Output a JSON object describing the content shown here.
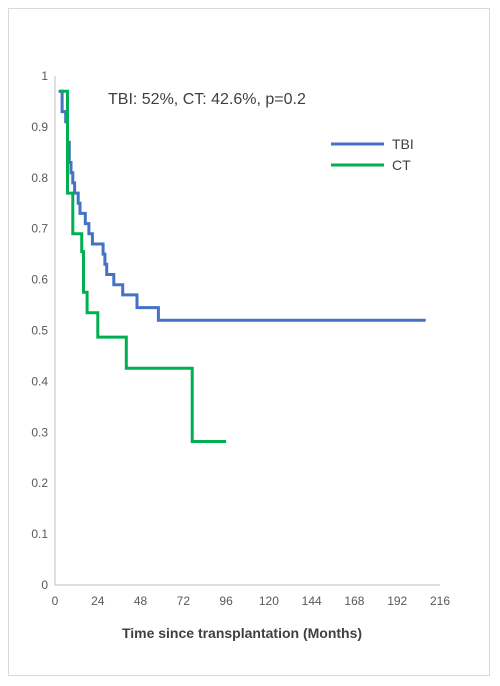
{
  "chart_data": {
    "type": "line",
    "step": true,
    "title": "",
    "annotation": "TBI: 52%, CT: 42.6%, p=0.2",
    "xlabel": "Time since transplantation (Months)",
    "ylabel": "",
    "xlim": [
      0,
      216
    ],
    "ylim": [
      0,
      1
    ],
    "xticks": [
      0,
      24,
      48,
      72,
      96,
      120,
      144,
      168,
      192,
      216
    ],
    "yticks": [
      0,
      0.1,
      0.2,
      0.3,
      0.4,
      0.5,
      0.6,
      0.7,
      0.8,
      0.9,
      1
    ],
    "ytick_labels": [
      "0",
      "0.1",
      "0.2",
      "0.3",
      "0.4",
      "0.5",
      "0.6",
      "0.7",
      "0.8",
      "0.9",
      "1"
    ],
    "grid": false,
    "legend": "right",
    "series": [
      {
        "name": "TBI",
        "color": "#4472C4",
        "points": [
          [
            2,
            0.97
          ],
          [
            4,
            0.97
          ],
          [
            4,
            0.93
          ],
          [
            6,
            0.93
          ],
          [
            6,
            0.91
          ],
          [
            7,
            0.91
          ],
          [
            7,
            0.87
          ],
          [
            8,
            0.87
          ],
          [
            8,
            0.83
          ],
          [
            9,
            0.83
          ],
          [
            9,
            0.81
          ],
          [
            10,
            0.81
          ],
          [
            10,
            0.79
          ],
          [
            11,
            0.79
          ],
          [
            11,
            0.77
          ],
          [
            13,
            0.77
          ],
          [
            13,
            0.75
          ],
          [
            14,
            0.75
          ],
          [
            14,
            0.73
          ],
          [
            17,
            0.73
          ],
          [
            17,
            0.71
          ],
          [
            19,
            0.71
          ],
          [
            19,
            0.69
          ],
          [
            21,
            0.69
          ],
          [
            21,
            0.67
          ],
          [
            27,
            0.67
          ],
          [
            27,
            0.65
          ],
          [
            28,
            0.65
          ],
          [
            28,
            0.63
          ],
          [
            29,
            0.63
          ],
          [
            29,
            0.61
          ],
          [
            33,
            0.61
          ],
          [
            33,
            0.59
          ],
          [
            38,
            0.59
          ],
          [
            38,
            0.57
          ],
          [
            46,
            0.57
          ],
          [
            46,
            0.545
          ],
          [
            58,
            0.545
          ],
          [
            58,
            0.52
          ],
          [
            208,
            0.52
          ]
        ]
      },
      {
        "name": "CT",
        "color": "#00B050",
        "points": [
          [
            3,
            0.97
          ],
          [
            7,
            0.97
          ],
          [
            7,
            0.77
          ],
          [
            10,
            0.77
          ],
          [
            10,
            0.69
          ],
          [
            15,
            0.69
          ],
          [
            15,
            0.655
          ],
          [
            16,
            0.655
          ],
          [
            16,
            0.575
          ],
          [
            18,
            0.575
          ],
          [
            18,
            0.535
          ],
          [
            24,
            0.535
          ],
          [
            24,
            0.487
          ],
          [
            40,
            0.487
          ],
          [
            40,
            0.426
          ],
          [
            77,
            0.426
          ],
          [
            77,
            0.282
          ],
          [
            96,
            0.282
          ]
        ]
      }
    ]
  }
}
